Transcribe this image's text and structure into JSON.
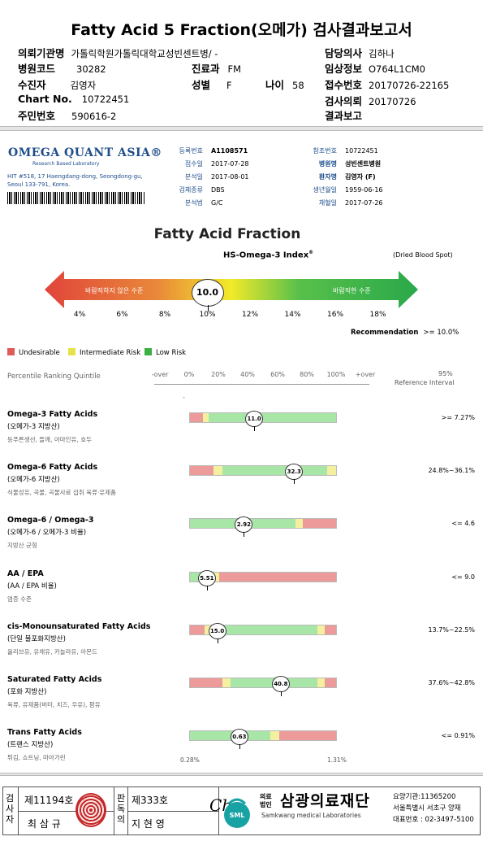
{
  "title": "Fatty Acid 5 Fraction(오메가) 검사결과보고서",
  "patient": {
    "institution_label": "의뢰기관명",
    "institution": "가톨릭학원가톨릭대학교성빈센트병/ -",
    "hospital_code_label": "병원코드",
    "hospital_code": "30282",
    "patient_label": "수진자",
    "patient": "김영자",
    "chart_label": "Chart No.",
    "chart": "10722451",
    "id_label": "주민번호",
    "id": "590616-2",
    "dept_label": "진료과",
    "dept": "FM",
    "sex_label": "성별",
    "sex": "F",
    "age_label": "나이",
    "age": "58",
    "doctor_label": "담당의사",
    "doctor": "김하나",
    "clinical_label": "임상정보",
    "clinical": "O764L1CM0",
    "receipt_label": "접수번호",
    "receipt": "20170726-22165",
    "request_label": "검사의뢰",
    "request": "20170726",
    "report_label": "결과보고",
    "report": ""
  },
  "lab": {
    "logo": "OMEGA QUANT ASIA®",
    "tagline": "Research Based Laboratory",
    "address": "HIT #518, 17 Haengdang-dong, Seongdong-gu, Seoul 133-791, Korea.",
    "left_fields": [
      {
        "k": "등록번호",
        "v": "A1108571"
      },
      {
        "k": "접수일",
        "v": "2017-07-28"
      },
      {
        "k": "분석일",
        "v": "2017-08-01"
      },
      {
        "k": "검체종류",
        "v": "DBS"
      },
      {
        "k": "분석법",
        "v": "G/C"
      }
    ],
    "right_fields": [
      {
        "k": "참조번호",
        "v": "10722451"
      },
      {
        "k": "병원명",
        "v": "성빈센트병원"
      },
      {
        "k": "환자명",
        "v": "김영자 (F)"
      },
      {
        "k": "생년월일",
        "v": "1959-06-16"
      },
      {
        "k": "채혈일",
        "v": "2017-07-26"
      }
    ]
  },
  "fraction": {
    "title": "Fatty Acid Fraction",
    "index_title": "HS-Omega-3 Index",
    "index_sup": "®",
    "dried": "(Dried Blood Spot)",
    "left_text": "바람직하지 않은 수준",
    "right_text": "바람직한 수준",
    "value": "10.0",
    "value_num": 10.0,
    "scale": [
      "4%",
      "6%",
      "8%",
      "10%",
      "12%",
      "14%",
      "16%",
      "18%"
    ],
    "recommendation_label": "Recommendation",
    "recommendation": ">= 10.0%"
  },
  "legend": [
    {
      "label": "Undesirable",
      "color": "#e05a5a"
    },
    {
      "label": "Intermediate Risk",
      "color": "#e6e24a"
    },
    {
      "label": "Low Risk",
      "color": "#3cb043"
    }
  ],
  "percentile": {
    "title": "Percentile Ranking Quintile",
    "labels": [
      "-over",
      "0%",
      "20%",
      "40%",
      "60%",
      "80%",
      "100%",
      "+over"
    ],
    "ref_top": "95%",
    "ref_bottom": "Reference Interval",
    "dash": "-"
  },
  "colors": {
    "red": "#ec9a9a",
    "yellow": "#f4f0a0",
    "green": "#a8e6a8",
    "accent": "#1e4d8c"
  },
  "rows": [
    {
      "name": "Omega-3 Fatty Acids",
      "sub": "(오메가-3 지방산)",
      "note": "등푸른생선, 들깨, 아마인유, 호두",
      "value": "11.0",
      "pos": 0.44,
      "ref": ">= 7.27%",
      "bands": [
        [
          "red",
          0.09
        ],
        [
          "yellow",
          0.04
        ],
        [
          "green",
          0.87
        ]
      ]
    },
    {
      "name": "Omega-6 Fatty Acids",
      "sub": "(오메가-6 지방산)",
      "note": "식물성유, 곡물, 곡물사료 섭취 육류·유제품",
      "value": "32.3",
      "pos": 0.71,
      "ref": "24.8%~36.1%",
      "bands": [
        [
          "red",
          0.16
        ],
        [
          "yellow",
          0.06
        ],
        [
          "green",
          0.72
        ],
        [
          "yellow",
          0.06
        ]
      ]
    },
    {
      "name": "Omega-6 / Omega-3",
      "sub": "(오메가-6 / 오메가-3 비율)",
      "note": "지방산 균형",
      "value": "2.92",
      "pos": 0.37,
      "ref": "<= 4.6",
      "bands": [
        [
          "green",
          0.72
        ],
        [
          "yellow",
          0.05
        ],
        [
          "red",
          0.23
        ]
      ]
    },
    {
      "name": "AA / EPA",
      "sub": "(AA / EPA 비율)",
      "note": "염증 수준",
      "value": "5.51",
      "pos": 0.12,
      "ref": "<= 9.0",
      "bands": [
        [
          "green",
          0.15
        ],
        [
          "yellow",
          0.05
        ],
        [
          "red",
          0.8
        ]
      ]
    },
    {
      "name": "cis-Monounsaturated Fatty Acids",
      "sub": "(단일 불포화지방산)",
      "note": "올리브유, 유채유, 카놀라유, 아몬드",
      "value": "15.0",
      "pos": 0.19,
      "ref": "13.7%~22.5%",
      "bands": [
        [
          "red",
          0.1
        ],
        [
          "yellow",
          0.05
        ],
        [
          "green",
          0.72
        ],
        [
          "yellow",
          0.05
        ],
        [
          "red",
          0.08
        ]
      ]
    },
    {
      "name": "Saturated Fatty Acids",
      "sub": "(포화 지방산)",
      "note": "육류, 유제품(버터, 치즈, 우유), 팜유",
      "value": "40.8",
      "pos": 0.62,
      "ref": "37.6%~42.8%",
      "bands": [
        [
          "red",
          0.22
        ],
        [
          "yellow",
          0.06
        ],
        [
          "green",
          0.59
        ],
        [
          "yellow",
          0.05
        ],
        [
          "red",
          0.08
        ]
      ]
    },
    {
      "name": "Trans Fatty Acids",
      "sub": "(트랜스 지방산)",
      "note": "튀김, 쇼트닝, 마아가린",
      "value": "0.63",
      "pos": 0.34,
      "ref": "<= 0.91%",
      "bands": [
        [
          "green",
          0.55
        ],
        [
          "yellow",
          0.06
        ],
        [
          "red",
          0.39
        ]
      ]
    }
  ],
  "trans_axis": {
    "min": "0.28%",
    "max": "1.31%"
  },
  "footer": {
    "inspector_label": "검사자",
    "inspector_no": "제11194호",
    "inspector_name": "최 삼 규",
    "reviewer_label": "판독의",
    "reviewer_no": "제333호",
    "reviewer_name": "지 현 영",
    "signature": "Ch",
    "sml": "SML",
    "brand_pre1": "의료",
    "brand_pre2": "법인",
    "brand": "삼광의료재단",
    "brand_eng": "Samkwang medical Laboratories",
    "institution_code": "요양기관:11365200",
    "address": "서울특별시 서초구 양재",
    "phone": "대표번호 : 02-3497-5100"
  }
}
